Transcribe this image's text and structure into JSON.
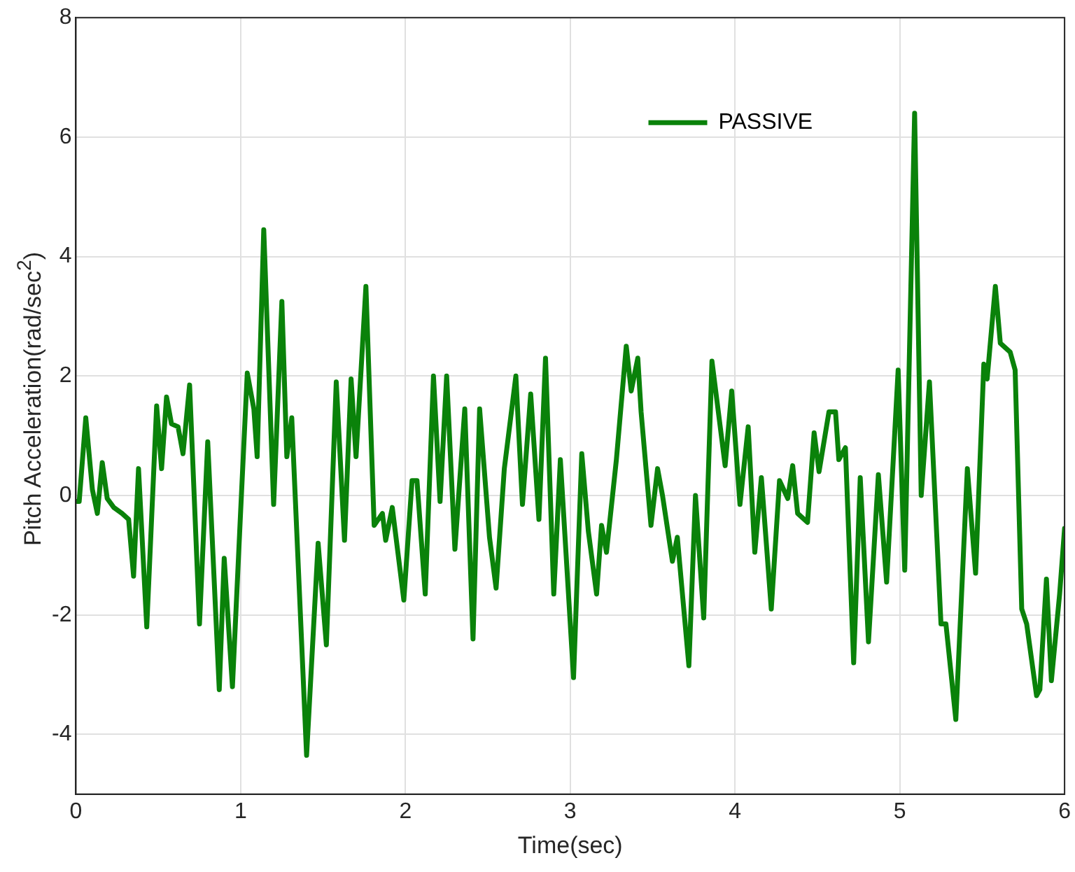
{
  "chart_data": {
    "type": "line",
    "xlabel": "Time(sec)",
    "ylabel": "Pitch Acceleration(rad/sec$^{2}$)",
    "xlim": [
      0,
      6
    ],
    "xticks": [
      0,
      1,
      2,
      3,
      4,
      5,
      6
    ],
    "ylim": [
      -5,
      8
    ],
    "yticks": [
      -4,
      -2,
      0,
      2,
      4,
      6,
      8
    ],
    "grid": true,
    "legend": "top right",
    "marker": "none",
    "line_style": "solid",
    "series": [
      {
        "name": "PASSIVE",
        "color": "#0a820a",
        "x": [
          0,
          0.02,
          0.06,
          0.1,
          0.13,
          0.16,
          0.19,
          0.23,
          0.28,
          0.32,
          0.35,
          0.38,
          0.43,
          0.49,
          0.52,
          0.55,
          0.58,
          0.62,
          0.65,
          0.69,
          0.75,
          0.8,
          0.87,
          0.9,
          0.95,
          1.0,
          1.04,
          1.08,
          1.1,
          1.14,
          1.2,
          1.25,
          1.28,
          1.31,
          1.4,
          1.47,
          1.52,
          1.58,
          1.63,
          1.67,
          1.7,
          1.76,
          1.81,
          1.86,
          1.88,
          1.92,
          1.99,
          2.04,
          2.07,
          2.12,
          2.17,
          2.21,
          2.25,
          2.3,
          2.36,
          2.41,
          2.45,
          2.51,
          2.55,
          2.6,
          2.67,
          2.71,
          2.76,
          2.81,
          2.85,
          2.9,
          2.94,
          3.02,
          3.07,
          3.11,
          3.16,
          3.19,
          3.22,
          3.28,
          3.34,
          3.37,
          3.41,
          3.43,
          3.49,
          3.53,
          3.56,
          3.62,
          3.65,
          3.72,
          3.76,
          3.81,
          3.86,
          3.94,
          3.98,
          4.03,
          4.08,
          4.12,
          4.16,
          4.22,
          4.27,
          4.32,
          4.35,
          4.38,
          4.44,
          4.48,
          4.51,
          4.57,
          4.61,
          4.63,
          4.67,
          4.72,
          4.76,
          4.81,
          4.87,
          4.92,
          4.99,
          5.03,
          5.09,
          5.13,
          5.18,
          5.25,
          5.28,
          5.34,
          5.41,
          5.46,
          5.51,
          5.53,
          5.58,
          5.61,
          5.67,
          5.7,
          5.74,
          5.77,
          5.83,
          5.85,
          5.89,
          5.92,
          5.97,
          6.0
        ],
        "values": [
          -0.1,
          -0.1,
          1.3,
          0.1,
          -0.3,
          0.55,
          -0.05,
          -0.2,
          -0.3,
          -0.4,
          -1.35,
          0.45,
          -2.2,
          1.5,
          0.45,
          1.65,
          1.2,
          1.15,
          0.7,
          1.85,
          -2.15,
          0.9,
          -3.25,
          -1.05,
          -3.2,
          -0.25,
          2.05,
          1.45,
          0.65,
          4.45,
          -0.15,
          3.25,
          0.65,
          1.3,
          -4.35,
          -0.8,
          -2.5,
          1.9,
          -0.75,
          1.95,
          0.65,
          3.5,
          -0.5,
          -0.3,
          -0.75,
          -0.2,
          -1.75,
          0.25,
          0.25,
          -1.65,
          2.0,
          -0.1,
          2.0,
          -0.9,
          1.45,
          -2.4,
          1.45,
          -0.7,
          -1.55,
          0.45,
          2.0,
          -0.15,
          1.7,
          -0.4,
          2.3,
          -1.65,
          0.6,
          -3.05,
          0.7,
          -0.6,
          -1.65,
          -0.5,
          -0.95,
          0.6,
          2.5,
          1.75,
          2.3,
          1.4,
          -0.5,
          0.45,
          0.0,
          -1.1,
          -0.7,
          -2.85,
          0.0,
          -2.05,
          2.25,
          0.5,
          1.75,
          -0.15,
          1.15,
          -0.95,
          0.3,
          -1.9,
          0.25,
          -0.05,
          0.5,
          -0.3,
          -0.45,
          1.05,
          0.4,
          1.4,
          1.4,
          0.6,
          0.8,
          -2.8,
          0.3,
          -2.45,
          0.35,
          -1.45,
          2.1,
          -1.25,
          6.4,
          0.0,
          1.9,
          -2.15,
          -2.15,
          -3.75,
          0.45,
          -1.3,
          2.2,
          1.95,
          3.5,
          2.55,
          2.4,
          2.1,
          -1.9,
          -2.15,
          -3.35,
          -3.25,
          -1.4,
          -3.1,
          -1.65,
          -0.55
        ]
      }
    ]
  }
}
